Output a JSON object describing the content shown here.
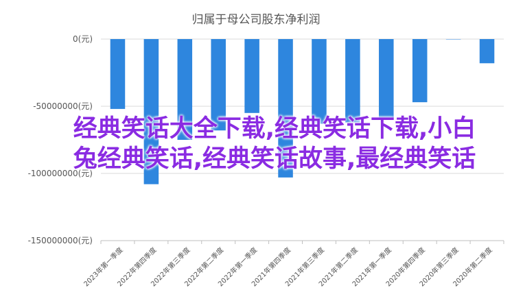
{
  "chart_data": {
    "type": "bar",
    "title": "归属于母公司股东净利润",
    "xlabel": "",
    "ylabel": "",
    "ylim": [
      -150000000,
      0
    ],
    "yticks": [
      {
        "value": 0,
        "label": "0(元)"
      },
      {
        "value": -50000000,
        "label": "-50000000(元)"
      },
      {
        "value": -100000000,
        "label": "-100000000(元)"
      },
      {
        "value": -150000000,
        "label": "-150000000(元)"
      }
    ],
    "categories": [
      "2023年第一季度",
      "2022年第四季度",
      "2022年第三季度",
      "2022年第二季度",
      "2022年第一季度",
      "2021年第四季度",
      "2021年第三季度",
      "2021年第二季度",
      "2021年第一季度",
      "2020年第四季度",
      "2020年第三季度",
      "2020年第二季度"
    ],
    "values": [
      -52000000,
      -108000000,
      -75000000,
      -68000000,
      -55000000,
      -103000000,
      -63000000,
      -62000000,
      -60000000,
      -47000000,
      0,
      -18000000
    ],
    "grid": true,
    "bar_color": "#2e86de"
  },
  "overlay_text": "经典笑话大全下载,经典笑话下载,小白兔经典笑话,经典笑话故事,最经典笑话"
}
